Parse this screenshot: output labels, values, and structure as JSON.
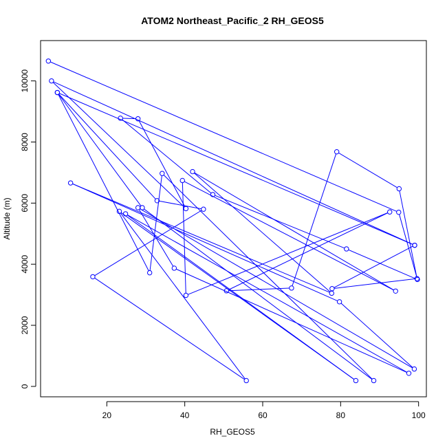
{
  "chart_data": {
    "type": "line",
    "title": "ATOM2 Northeast_Pacific_2 RH_GEOS5",
    "xlabel": "RH_GEOS5",
    "ylabel": "Altitude (m)",
    "xlim": [
      3.0,
      102.0
    ],
    "ylim": [
      -340,
      11320
    ],
    "xticks": [
      20,
      40,
      60,
      80,
      100
    ],
    "yticks": [
      0,
      2000,
      4000,
      6000,
      8000,
      10000
    ],
    "grid": false,
    "legend": false,
    "series": [
      {
        "color": "#0000ff",
        "marker": "open-circle",
        "points": [
          [
            5.0,
            10650
          ],
          [
            94.9,
            5700
          ],
          [
            99.7,
            3500
          ],
          [
            81.5,
            4500
          ],
          [
            47.2,
            6280
          ],
          [
            23.5,
            8780
          ],
          [
            28.0,
            8760
          ],
          [
            40.3,
            5820
          ],
          [
            5.8,
            10000
          ],
          [
            99.0,
            4620
          ],
          [
            7.3,
            9620
          ],
          [
            29.1,
            5850
          ],
          [
            88.5,
            190
          ],
          [
            34.2,
            6970
          ],
          [
            31.0,
            3720
          ],
          [
            7.3,
            9620
          ],
          [
            32.9,
            6080
          ],
          [
            44.8,
            5800
          ],
          [
            16.4,
            3590
          ],
          [
            55.8,
            190
          ],
          [
            23.2,
            5730
          ],
          [
            83.9,
            190
          ],
          [
            24.8,
            5650
          ],
          [
            97.5,
            430
          ],
          [
            37.3,
            3870
          ],
          [
            28.0,
            5850
          ],
          [
            98.9,
            570
          ],
          [
            79.7,
            2770
          ],
          [
            10.7,
            6660
          ],
          [
            77.7,
            3050
          ],
          [
            42.0,
            7030
          ],
          [
            94.1,
            3120
          ],
          [
            39.4,
            6740
          ],
          [
            40.3,
            2980
          ],
          [
            92.6,
            5710
          ],
          [
            50.7,
            3130
          ],
          [
            67.4,
            3220
          ],
          [
            79.0,
            7680
          ],
          [
            95.0,
            6470
          ],
          [
            99.6,
            3530
          ],
          [
            77.8,
            3200
          ],
          [
            99.0,
            4620
          ]
        ]
      }
    ]
  }
}
